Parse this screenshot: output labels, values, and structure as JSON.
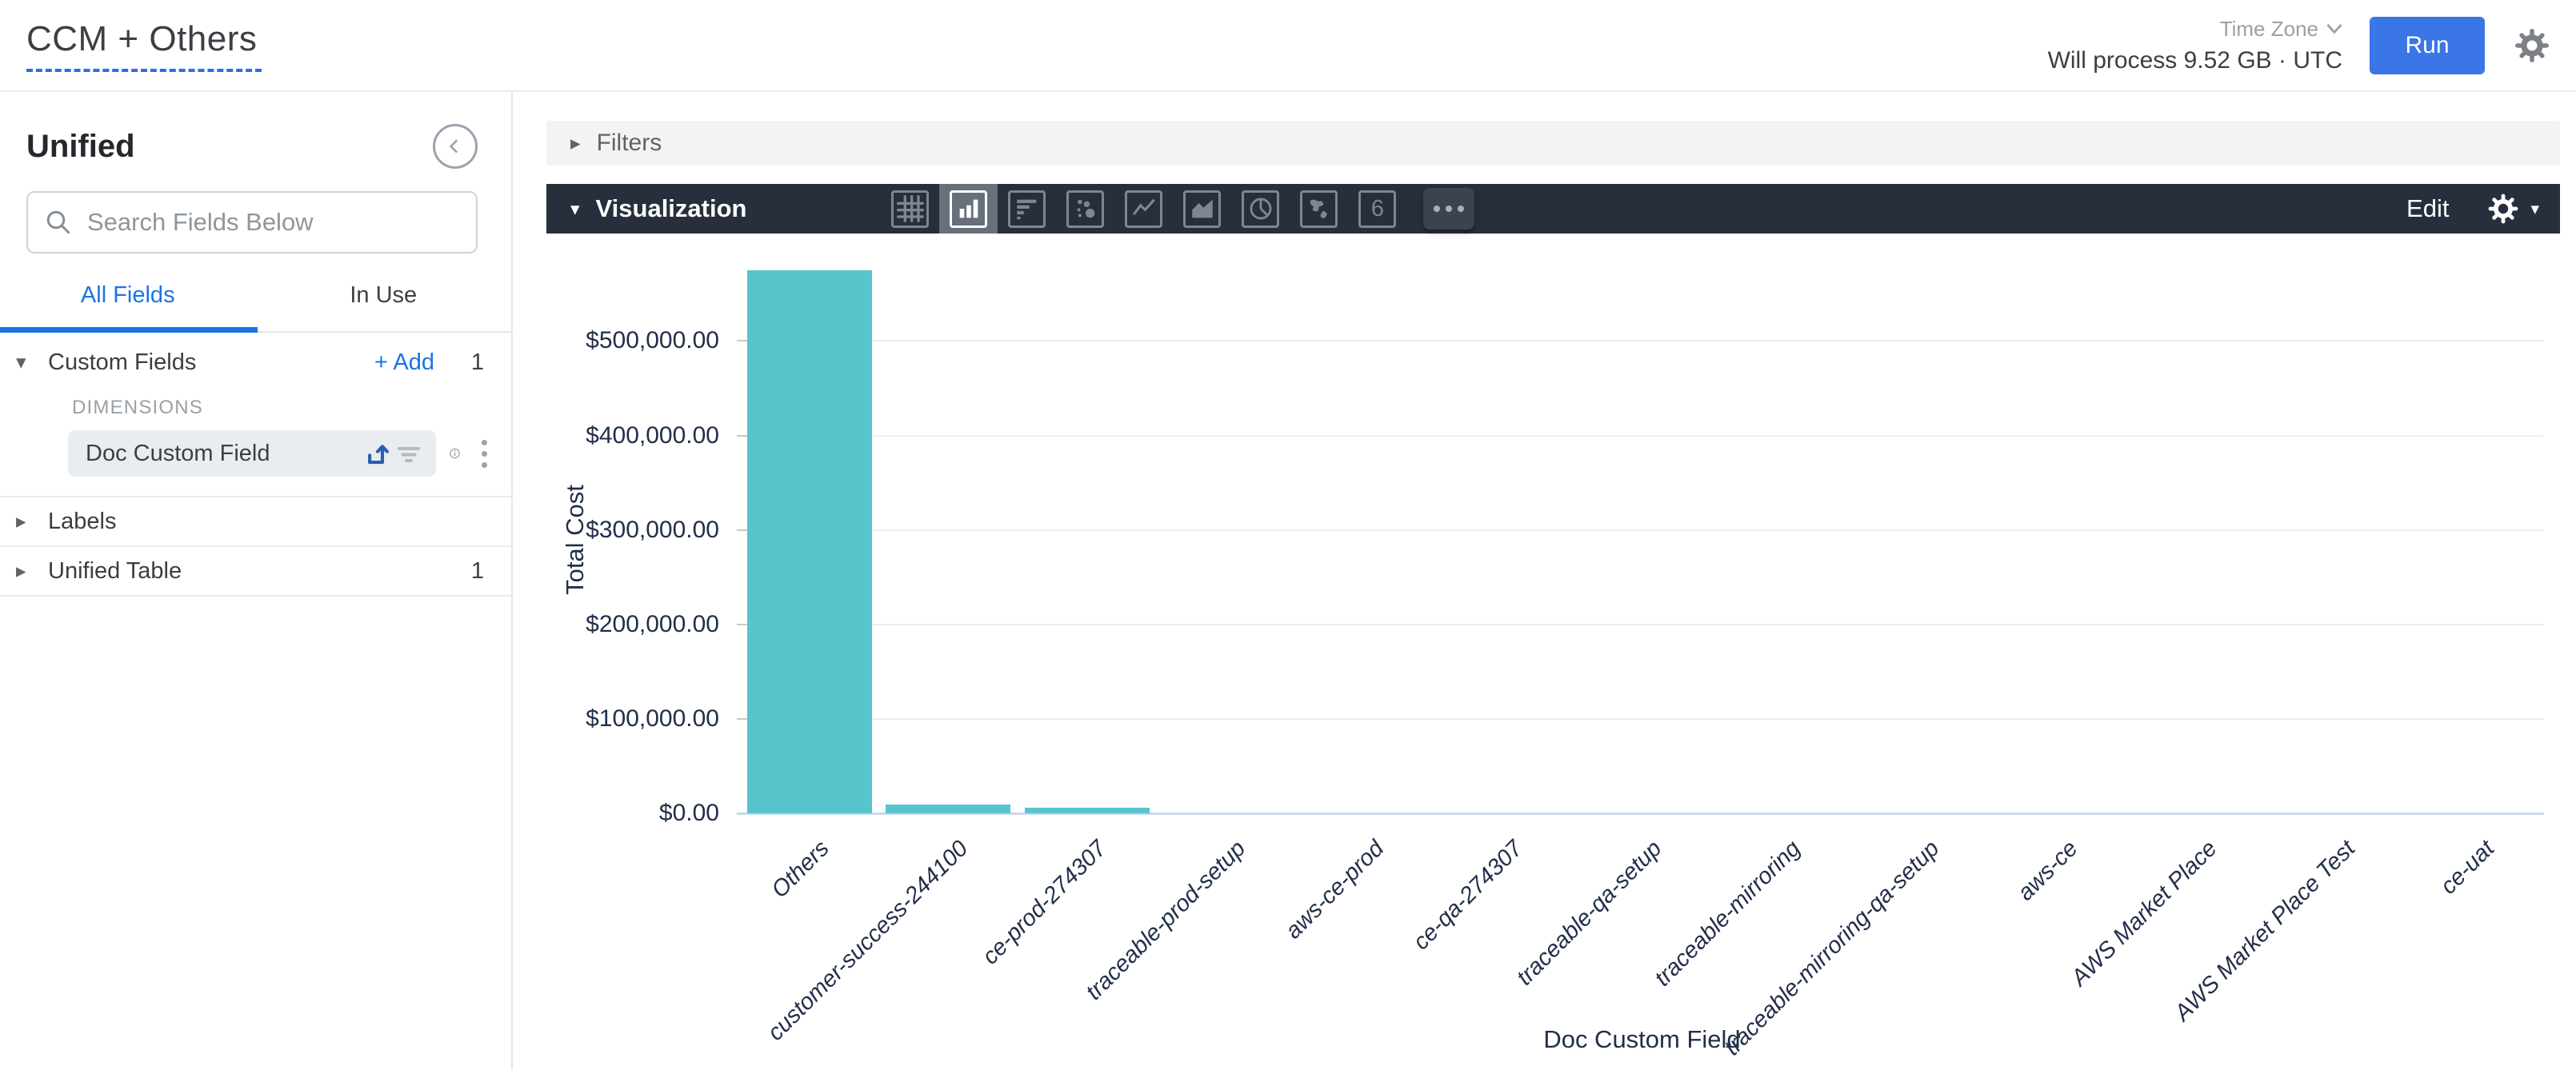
{
  "header": {
    "title": "CCM + Others",
    "time_zone_label": "Time Zone",
    "process_info": "Will process 9.52 GB · UTC",
    "run_label": "Run"
  },
  "sidebar": {
    "view_name": "Unified",
    "search_placeholder": "Search Fields Below",
    "tabs": [
      {
        "label": "All Fields",
        "active": true
      },
      {
        "label": "In Use",
        "active": false
      }
    ],
    "custom_fields": {
      "label": "Custom Fields",
      "add_label": "+ Add",
      "count": "1",
      "group_label": "DIMENSIONS",
      "field": "Doc Custom Field"
    },
    "labels_section": {
      "label": "Labels"
    },
    "unified_table": {
      "label": "Unified Table",
      "count": "1"
    }
  },
  "filters": {
    "label": "Filters"
  },
  "viz": {
    "label": "Visualization",
    "edit_label": "Edit",
    "selected_icon": "column-chart",
    "icon_names": [
      "table-icon",
      "column-chart-icon",
      "bar-chart-icon",
      "scatter-icon",
      "line-chart-icon",
      "area-chart-icon",
      "pie-chart-icon",
      "map-icon",
      "single-value-icon",
      "more-icon"
    ]
  },
  "icons": {
    "caret_down": "▾",
    "caret_right": "▸",
    "single_value_glyph": "6"
  },
  "chart_data": {
    "type": "bar",
    "title": "",
    "xlabel": "Doc Custom Field",
    "ylabel": "Total Cost",
    "categories": [
      "Others",
      "customer-success-244100",
      "ce-prod-274307",
      "traceable-prod-setup",
      "aws-ce-prod",
      "ce-qa-274307",
      "traceable-qa-setup",
      "traceable-mirroring",
      "traceable-mirroring-qa-setup",
      "aws-ce",
      "AWS Market Place",
      "AWS Market Place Test",
      "ce-uat"
    ],
    "values": [
      575000,
      9500,
      6200,
      0,
      0,
      0,
      0,
      0,
      0,
      0,
      0,
      0,
      0
    ],
    "ylim": [
      0,
      580000
    ],
    "yticks": [
      {
        "value": 0,
        "label": "$0.00"
      },
      {
        "value": 100000,
        "label": "$100,000.00"
      },
      {
        "value": 200000,
        "label": "$200,000.00"
      },
      {
        "value": 300000,
        "label": "$300,000.00"
      },
      {
        "value": 400000,
        "label": "$400,000.00"
      },
      {
        "value": 500000,
        "label": "$500,000.00"
      }
    ],
    "bar_color": "#58c5cd",
    "grid": true,
    "legend": "none"
  }
}
